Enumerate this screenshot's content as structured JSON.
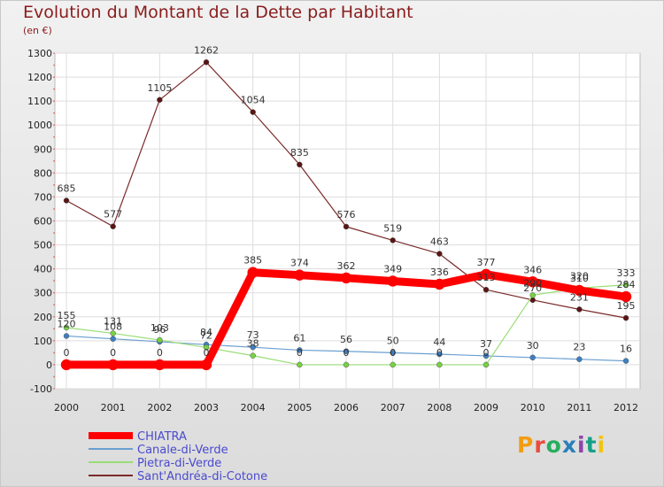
{
  "title": "Evolution du Montant de la Dette par Habitant",
  "subtitle": "(en €)",
  "logo": {
    "text": "Proxiti",
    "colors": [
      "#f39c12",
      "#e74c3c",
      "#27ae60",
      "#2980b9",
      "#8e44ad",
      "#16a085",
      "#f1c40f"
    ]
  },
  "chart_data": {
    "type": "line",
    "x": [
      2000,
      2001,
      2002,
      2003,
      2004,
      2005,
      2006,
      2007,
      2008,
      2009,
      2010,
      2011,
      2012
    ],
    "ylim": [
      -100,
      1300
    ],
    "yticks": [
      -100,
      0,
      100,
      200,
      300,
      400,
      500,
      600,
      700,
      800,
      900,
      1000,
      1100,
      1200,
      1300
    ],
    "grid": true,
    "legend": "bottom-left",
    "series": [
      {
        "name": "CHIATRA",
        "color": "#ff0000",
        "marker": "#ff0000",
        "width": 9,
        "values": [
          0,
          0,
          0,
          0,
          385,
          374,
          362,
          349,
          336,
          377,
          346,
          310,
          284
        ],
        "labels": [
          "0",
          "0",
          "0",
          "0",
          "385",
          "374",
          "362",
          "349",
          "336",
          "377",
          "346",
          "310",
          "284"
        ]
      },
      {
        "name": "Canale-di-Verde",
        "color": "#6a9fd0",
        "marker": "#3d7fc2",
        "width": 1.2,
        "values": [
          120,
          108,
          96,
          84,
          73,
          61,
          56,
          50,
          44,
          37,
          30,
          23,
          16
        ],
        "labels": [
          "120",
          "108",
          "96",
          "84",
          "73",
          "61",
          "56",
          "50",
          "44",
          "37",
          "30",
          "23",
          "16"
        ]
      },
      {
        "name": "Pietra-di-Verde",
        "color": "#99dd77",
        "marker": "#77d144",
        "width": 1.2,
        "values": [
          155,
          131,
          103,
          72,
          38,
          0,
          0,
          0,
          0,
          0,
          290,
          320,
          333
        ],
        "labels": [
          "155",
          "131",
          "103",
          "72",
          "38",
          "0",
          "0",
          "0",
          "0",
          "0",
          "290",
          "320",
          "333"
        ]
      },
      {
        "name": "Sant'Andréa-di-Cotone",
        "color": "#7a2a2a",
        "marker": "#5a1414",
        "width": 1.2,
        "values": [
          685,
          577,
          1105,
          1262,
          1054,
          835,
          576,
          519,
          463,
          313,
          270,
          231,
          195
        ],
        "labels": [
          "685",
          "577",
          "1105",
          "1262",
          "1054",
          "835",
          "576",
          "519",
          "463",
          "313",
          "270",
          "231",
          "195"
        ]
      }
    ]
  }
}
